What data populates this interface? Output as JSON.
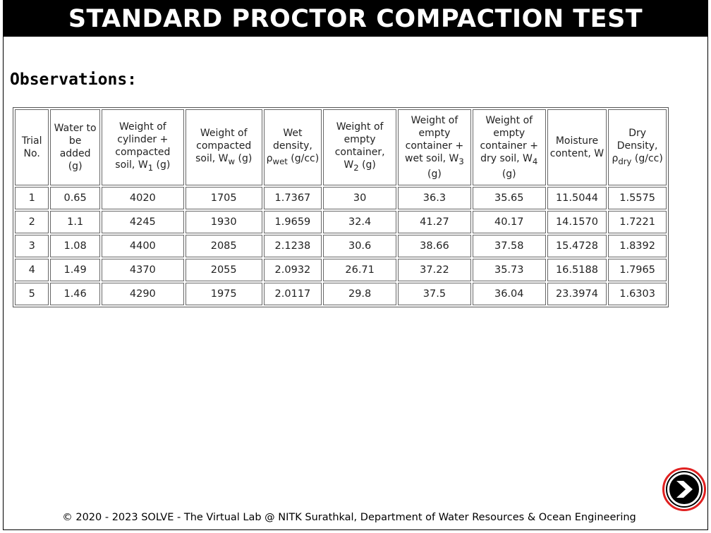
{
  "title": "STANDARD PROCTOR COMPACTION TEST",
  "heading": "Observations:",
  "table": {
    "headers": [
      [
        "Trial No."
      ],
      [
        "Water to be added (g)"
      ],
      [
        "Weight of cylinder + compacted soil, W",
        "1",
        " (g)"
      ],
      [
        "Weight of compacted soil, W",
        "w",
        " (g)"
      ],
      [
        "Wet density, ρ",
        "wet",
        " (g/cc)"
      ],
      [
        "Weight of empty container, W",
        "2",
        " (g)"
      ],
      [
        "Weight of empty container + wet soil, W",
        "3",
        " (g)"
      ],
      [
        "Weight of empty container + dry soil, W",
        "4",
        " (g)"
      ],
      [
        "Moisture content, W"
      ],
      [
        "Dry Density, ρ",
        "dry",
        " (g/cc)"
      ]
    ],
    "rows": [
      [
        "1",
        "0.65",
        "4020",
        "1705",
        "1.7367",
        "30",
        "36.3",
        "35.65",
        "11.5044",
        "1.5575"
      ],
      [
        "2",
        "1.1",
        "4245",
        "1930",
        "1.9659",
        "32.4",
        "41.27",
        "40.17",
        "14.1570",
        "1.7221"
      ],
      [
        "3",
        "1.08",
        "4400",
        "2085",
        "2.1238",
        "30.6",
        "38.66",
        "37.58",
        "15.4728",
        "1.8392"
      ],
      [
        "4",
        "1.49",
        "4370",
        "2055",
        "2.0932",
        "26.71",
        "37.22",
        "35.73",
        "16.5188",
        "1.7965"
      ],
      [
        "5",
        "1.46",
        "4290",
        "1975",
        "2.0117",
        "29.8",
        "37.5",
        "36.04",
        "23.3974",
        "1.6303"
      ]
    ]
  },
  "footer": "© 2020 - 2023 SOLVE - The Virtual Lab @ NITK Surathkal, Department of Water Resources & Ocean Engineering",
  "next_button": {
    "icon": "chevron-right-icon",
    "accent": "#e02020"
  }
}
